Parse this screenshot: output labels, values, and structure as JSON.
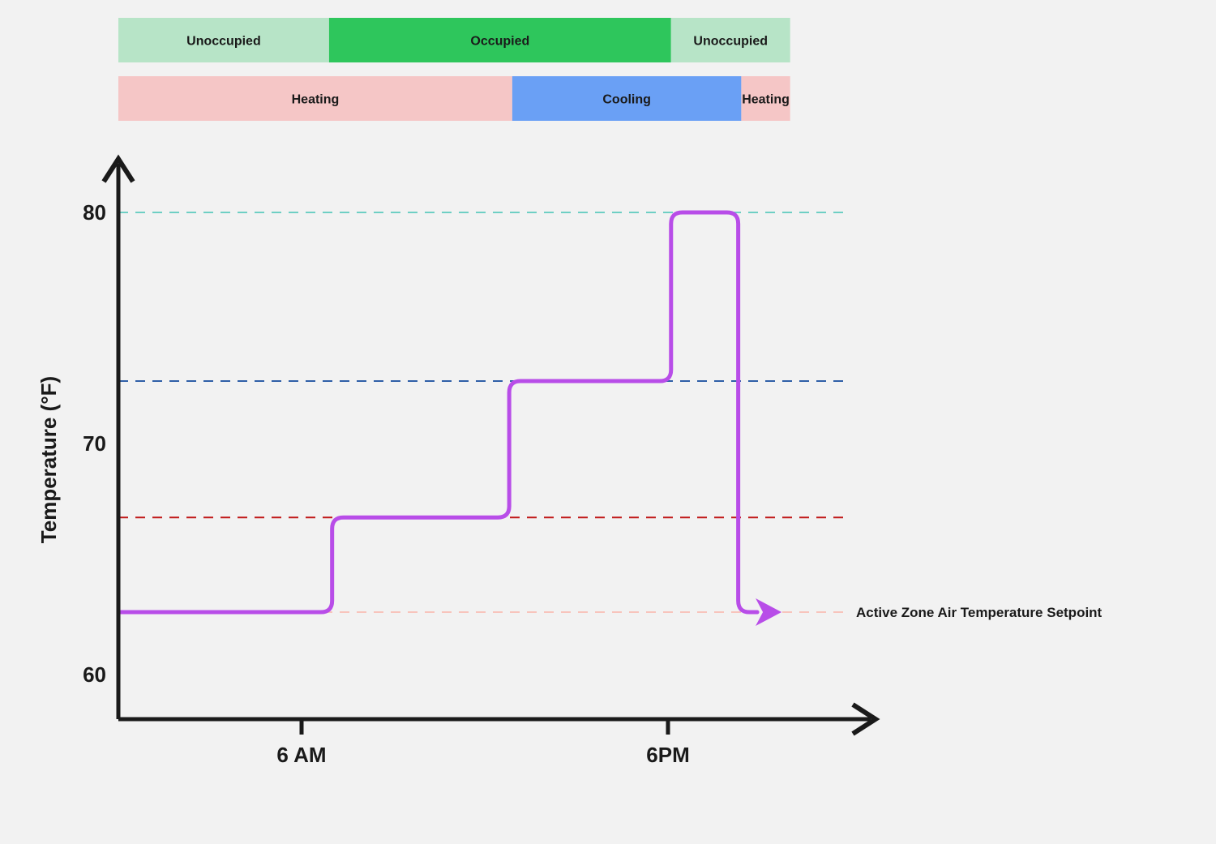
{
  "chart_data": {
    "type": "line",
    "title": "",
    "xlabel": "",
    "ylabel": "Temperature (°F)",
    "x_ticks": [
      {
        "label": "6 AM",
        "hour": 6
      },
      {
        "label": "6PM",
        "hour": 18
      }
    ],
    "y_ticks": [
      60,
      70,
      80
    ],
    "occupancy_bands": [
      {
        "label": "Unoccupied",
        "start_hour": 0,
        "end_hour": 6.9,
        "color": "#b7e4c7"
      },
      {
        "label": "Occupied",
        "start_hour": 6.9,
        "end_hour": 18.1,
        "color": "#2ec65c"
      },
      {
        "label": "Unoccupied",
        "start_hour": 18.1,
        "end_hour": 22,
        "color": "#b7e4c7"
      }
    ],
    "mode_bands": [
      {
        "label": "Heating",
        "start_hour": 0,
        "end_hour": 12.9,
        "color": "#f5c6c6"
      },
      {
        "label": "Cooling",
        "start_hour": 12.9,
        "end_hour": 20.4,
        "color": "#6aa0f5"
      },
      {
        "label": "Heating",
        "start_hour": 20.4,
        "end_hour": 22,
        "color": "#f5c6c6"
      }
    ],
    "reference_lines": [
      {
        "value": 80,
        "color": "#6ecfc4"
      },
      {
        "value": 72.7,
        "color": "#2f5fa7"
      },
      {
        "value": 66.8,
        "color": "#c01818"
      },
      {
        "value": 62.7,
        "color": "#f8c4bc"
      }
    ],
    "series": [
      {
        "color": "#b84de8",
        "points": [
          {
            "x": 0,
            "y": 62.7
          },
          {
            "x": 7.0,
            "y": 62.7
          },
          {
            "x": 7.0,
            "y": 66.8
          },
          {
            "x": 12.8,
            "y": 66.8
          },
          {
            "x": 12.8,
            "y": 72.7
          },
          {
            "x": 18.1,
            "y": 72.7
          },
          {
            "x": 18.1,
            "y": 80
          },
          {
            "x": 20.3,
            "y": 80
          },
          {
            "x": 20.3,
            "y": 62.7
          },
          {
            "x": 21.4,
            "y": 62.7
          }
        ]
      }
    ],
    "annotation": "Active Zone Air Temperature Setpoint",
    "axis_color": "#1a1a1a"
  }
}
